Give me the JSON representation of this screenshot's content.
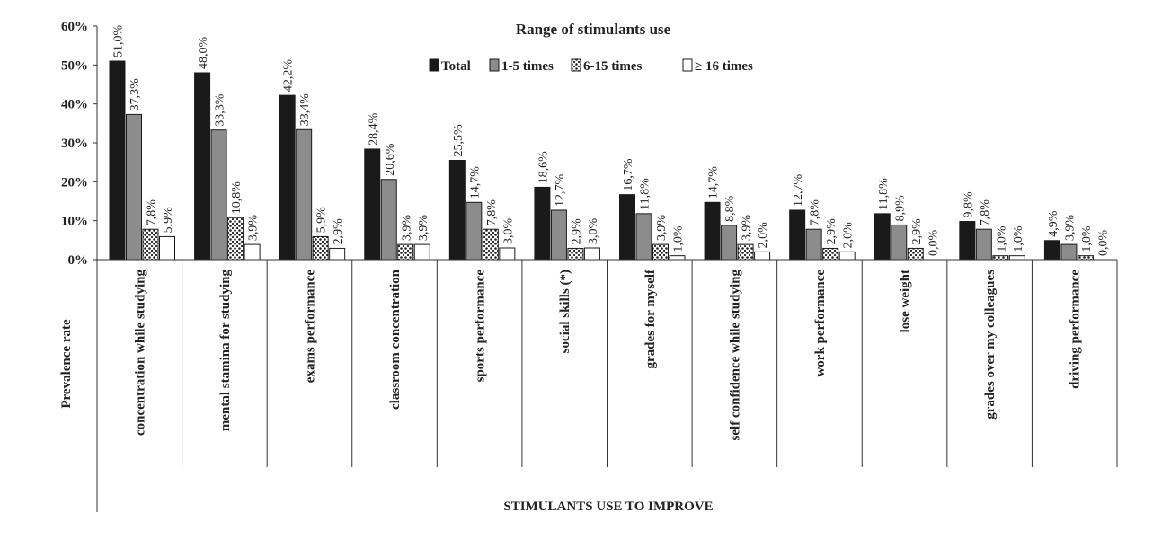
{
  "chart_data": {
    "type": "bar",
    "title": "Range of stimulants use",
    "ylabel": "Prevalence rate",
    "xlabel": "STIMULANTS USE TO IMPROVE",
    "ylim": [
      0,
      60
    ],
    "yticks": [
      "0%",
      "10%",
      "20%",
      "30%",
      "40%",
      "50%",
      "60%"
    ],
    "grid": false,
    "legend_position": "top",
    "categories": [
      "concentration while studying",
      "mental stamina for studying",
      "exams performance",
      "classroom concentration",
      "sports performance",
      "social skills (*)",
      "grades for myself",
      "self confidence while  studying",
      "work performance",
      "lose weight",
      "grades over my colleagues",
      "driving performance"
    ],
    "series": [
      {
        "name": "Total",
        "fill": "#1a1a1a",
        "values": [
          51.0,
          48.0,
          42.2,
          28.4,
          25.5,
          18.6,
          16.7,
          14.7,
          12.7,
          11.8,
          9.8,
          4.9
        ],
        "labels": [
          "51,0%",
          "48,0%",
          "42,2%",
          "28,4%",
          "25,5%",
          "18,6%",
          "16,7%",
          "14,7%",
          "12,7%",
          "11,8%",
          "9,8%",
          "4,9%"
        ]
      },
      {
        "name": "1-5 times",
        "fill": "#8c8c8c",
        "values": [
          37.3,
          33.3,
          33.4,
          20.6,
          14.7,
          12.7,
          11.8,
          8.8,
          7.8,
          8.9,
          7.8,
          3.9
        ],
        "labels": [
          "37,3%",
          "33,3%",
          "33,4%",
          "20,6%",
          "14,7%",
          "12,7%",
          "11,8%",
          "8,8%",
          "7,8%",
          "8,9%",
          "7,8%",
          "3,9%"
        ]
      },
      {
        "name": "6-15 times",
        "fill": "pattern-dots",
        "values": [
          7.8,
          10.8,
          5.9,
          3.9,
          7.8,
          2.9,
          3.9,
          3.9,
          2.9,
          2.9,
          1.0,
          1.0
        ],
        "labels": [
          "7,8%",
          "10,8%",
          "5,9%",
          "3,9%",
          "7,8%",
          "2,9%",
          "3,9%",
          "3,9%",
          "2,9%",
          "2,9%",
          "1,0%",
          "1,0%"
        ]
      },
      {
        "name": "≥ 16 times",
        "fill": "#ffffff",
        "values": [
          5.9,
          3.9,
          2.9,
          3.9,
          3.0,
          3.0,
          1.0,
          2.0,
          2.0,
          0.0,
          1.0,
          0.0
        ],
        "labels": [
          "5,9%",
          "3,9%",
          "2,9%",
          "3,9%",
          "3,0%",
          "3,0%",
          "1,0%",
          "2,0%",
          "2,0%",
          "0,0%",
          "1,0%",
          "0,0%"
        ]
      }
    ]
  }
}
